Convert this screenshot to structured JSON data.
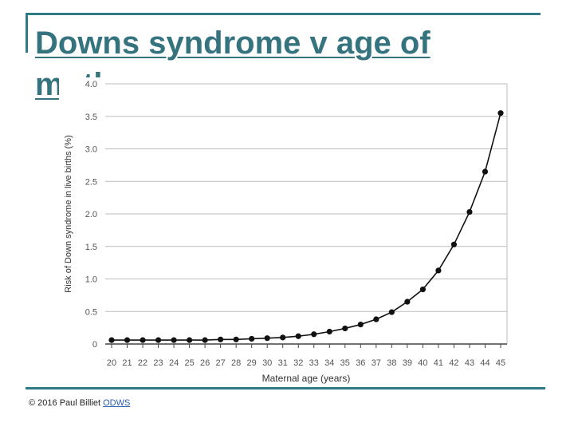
{
  "slide": {
    "title": "Downs syndrome v age of mother"
  },
  "footer": {
    "copyright": "© 2016 Paul Billiet",
    "link_text": "ODWS"
  },
  "colors": {
    "accent": "#35747e",
    "frame": "#2e7a85",
    "grid": "#bdbdbd",
    "series": "#111111"
  },
  "chart_data": {
    "type": "line",
    "xlabel": "Maternal age (years)",
    "ylabel": "Risk of Down syndrome in live births (%)",
    "xlim": [
      20,
      45
    ],
    "ylim": [
      0,
      4.0
    ],
    "x_ticks": [
      "20",
      "21",
      "22",
      "23",
      "24",
      "25",
      "26",
      "27",
      "28",
      "29",
      "30",
      "31",
      "32",
      "33",
      "34",
      "35",
      "36",
      "37",
      "38",
      "39",
      "40",
      "41",
      "42",
      "43",
      "44",
      "45"
    ],
    "y_ticks": [
      "0",
      "0.5",
      "1.0",
      "1.5",
      "2.0",
      "2.5",
      "3.0",
      "3.5",
      "4.0"
    ],
    "grid": true,
    "legend": "none",
    "series": [
      {
        "x": [
          20,
          21,
          22,
          23,
          24,
          25,
          26,
          27,
          28,
          29,
          30,
          31,
          32,
          33,
          34,
          35,
          36,
          37,
          38,
          39,
          40,
          41,
          42,
          43,
          44,
          45
        ],
        "y": [
          0.06,
          0.06,
          0.06,
          0.06,
          0.06,
          0.06,
          0.06,
          0.07,
          0.07,
          0.08,
          0.09,
          0.1,
          0.12,
          0.15,
          0.19,
          0.24,
          0.3,
          0.38,
          0.49,
          0.65,
          0.84,
          1.13,
          1.53,
          2.03,
          2.65,
          3.55
        ]
      }
    ]
  }
}
